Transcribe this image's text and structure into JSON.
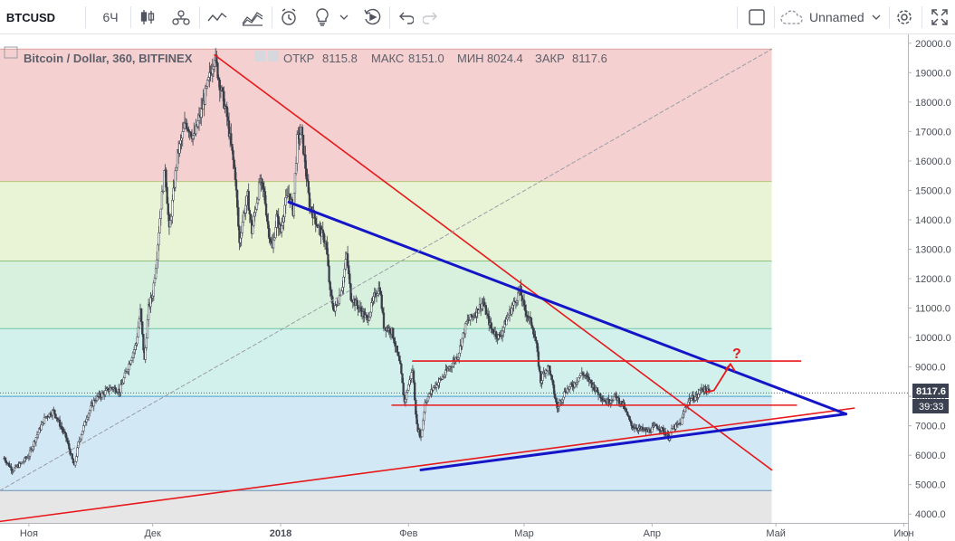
{
  "toolbar": {
    "symbol": "BTCUSD",
    "interval": "6Ч",
    "layout_name": "Unnamed",
    "icons": [
      "candles-icon",
      "compare-icon",
      "indicators-icon",
      "templates-icon",
      "alert-icon",
      "ideas-icon",
      "replay-icon",
      "undo-icon",
      "redo-icon",
      "square-icon",
      "cloud-icon",
      "settings-icon",
      "fullscreen-icon"
    ]
  },
  "legend": {
    "title": "Bitcoin / Dollar, 360, BITFINEX",
    "open_label": "ОТКР",
    "open": "8115.8",
    "high_label": "МАКС",
    "high": "8151.0",
    "low_label": "МИН",
    "low": "8024.4",
    "close_label": "ЗАКР",
    "close": "8117.6"
  },
  "price_tag": {
    "price": "8117.6",
    "countdown": "39:33"
  },
  "annotation": "?",
  "colors": {
    "candle": "#3b3f4a",
    "trend_red": "#e8181b",
    "trend_blue": "#1515c8",
    "fib_red": "#f5d0d0",
    "fib_yellow": "#e9f4d6",
    "fib_green": "#d8f1de",
    "fib_teal": "#d3f1ec",
    "fib_blue": "#d2e8f4",
    "fib_gray": "#e6e6e6"
  },
  "chart_data": {
    "type": "candlestick",
    "symbol": "BTCUSD",
    "timeframe": "360",
    "ylim": [
      3700,
      20300
    ],
    "y_ticks": [
      4000,
      5000,
      6000,
      7000,
      8000,
      9000,
      10000,
      11000,
      12000,
      13000,
      14000,
      15000,
      16000,
      17000,
      18000,
      19000,
      20000
    ],
    "y_tick_labels": [
      "4000.0",
      "5000.0",
      "6000.0",
      "7000.0",
      "8000.0",
      "9000.0",
      "10000.0",
      "11000.0",
      "12000.0",
      "13000.0",
      "14000.0",
      "15000.0",
      "16000.0",
      "17000.0",
      "18000.0",
      "19000.0",
      "20000.0"
    ],
    "x_labels": [
      {
        "label": "Ноя",
        "day": 0
      },
      {
        "label": "Дек",
        "day": 30
      },
      {
        "label": "2018",
        "day": 61
      },
      {
        "label": "Фев",
        "day": 92
      },
      {
        "label": "Мар",
        "day": 120
      },
      {
        "label": "Апр",
        "day": 151
      },
      {
        "label": "Май",
        "day": 181
      },
      {
        "label": "Июн",
        "day": 212
      }
    ],
    "x_range_days": [
      -7,
      213
    ],
    "price_path": [
      [
        -6,
        5900
      ],
      [
        -4,
        5500
      ],
      [
        -2,
        5700
      ],
      [
        0,
        6000
      ],
      [
        2,
        6700
      ],
      [
        4,
        7300
      ],
      [
        6,
        7500
      ],
      [
        7,
        7200
      ],
      [
        9,
        6600
      ],
      [
        11,
        5600
      ],
      [
        12,
        6400
      ],
      [
        14,
        7300
      ],
      [
        16,
        7900
      ],
      [
        18,
        8100
      ],
      [
        20,
        8300
      ],
      [
        22,
        8200
      ],
      [
        24,
        9000
      ],
      [
        26,
        9800
      ],
      [
        27,
        10900
      ],
      [
        28,
        9200
      ],
      [
        29,
        11000
      ],
      [
        30,
        11500
      ],
      [
        31,
        12800
      ],
      [
        32,
        14500
      ],
      [
        33,
        15800
      ],
      [
        34,
        13600
      ],
      [
        36,
        16200
      ],
      [
        38,
        17300
      ],
      [
        40,
        16800
      ],
      [
        42,
        17800
      ],
      [
        44,
        19000
      ],
      [
        45,
        19600
      ],
      [
        46,
        18800
      ],
      [
        48,
        17500
      ],
      [
        50,
        15500
      ],
      [
        51,
        13200
      ],
      [
        52,
        14200
      ],
      [
        53,
        14800
      ],
      [
        54,
        13600
      ],
      [
        56,
        15300
      ],
      [
        57,
        14900
      ],
      [
        58,
        13700
      ],
      [
        59,
        13000
      ],
      [
        60,
        14100
      ],
      [
        61,
        13600
      ],
      [
        62,
        14500
      ],
      [
        63,
        14900
      ],
      [
        64,
        14300
      ],
      [
        65,
        16700
      ],
      [
        66,
        17000
      ],
      [
        67,
        15800
      ],
      [
        68,
        14500
      ],
      [
        70,
        13800
      ],
      [
        72,
        13200
      ],
      [
        73,
        11500
      ],
      [
        74,
        10900
      ],
      [
        75,
        11300
      ],
      [
        76,
        11800
      ],
      [
        77,
        12800
      ],
      [
        78,
        11400
      ],
      [
        80,
        11000
      ],
      [
        82,
        10600
      ],
      [
        84,
        11500
      ],
      [
        85,
        11700
      ],
      [
        86,
        10400
      ],
      [
        88,
        10200
      ],
      [
        90,
        9000
      ],
      [
        91,
        7800
      ],
      [
        92,
        8400
      ],
      [
        93,
        8900
      ],
      [
        94,
        7000
      ],
      [
        95,
        6600
      ],
      [
        96,
        7800
      ],
      [
        98,
        8300
      ],
      [
        100,
        8600
      ],
      [
        102,
        9000
      ],
      [
        104,
        9400
      ],
      [
        106,
        10500
      ],
      [
        108,
        10800
      ],
      [
        110,
        11200
      ],
      [
        112,
        10300
      ],
      [
        114,
        10000
      ],
      [
        116,
        10700
      ],
      [
        118,
        11300
      ],
      [
        119,
        11600
      ],
      [
        120,
        11000
      ],
      [
        122,
        10400
      ],
      [
        123,
        9700
      ],
      [
        124,
        8500
      ],
      [
        125,
        8900
      ],
      [
        126,
        9000
      ],
      [
        127,
        8300
      ],
      [
        128,
        7600
      ],
      [
        130,
        8200
      ],
      [
        132,
        8400
      ],
      [
        134,
        8800
      ],
      [
        136,
        8500
      ],
      [
        138,
        8100
      ],
      [
        140,
        7800
      ],
      [
        142,
        8000
      ],
      [
        144,
        7700
      ],
      [
        146,
        7000
      ],
      [
        148,
        6900
      ],
      [
        150,
        6800
      ],
      [
        152,
        7000
      ],
      [
        154,
        6800
      ],
      [
        155,
        6600
      ],
      [
        156,
        6900
      ],
      [
        158,
        7100
      ],
      [
        159,
        7600
      ],
      [
        160,
        7900
      ],
      [
        162,
        8000
      ],
      [
        163,
        8300
      ],
      [
        165,
        8117
      ]
    ],
    "fibonacci_levels": [
      {
        "price": 19800
      },
      {
        "price": 15300
      },
      {
        "price": 12600
      },
      {
        "price": 10300
      },
      {
        "price": 8000
      },
      {
        "price": 4800
      }
    ],
    "trendlines": [
      {
        "color": "red",
        "points": [
          [
            45,
            19600
          ],
          [
            180,
            5500
          ]
        ]
      },
      {
        "color": "red",
        "points": [
          [
            -7,
            3750
          ],
          [
            200,
            7600
          ]
        ]
      },
      {
        "color": "blue",
        "points": [
          [
            63,
            14600
          ],
          [
            198,
            7400
          ]
        ]
      },
      {
        "color": "blue",
        "points": [
          [
            95,
            5500
          ],
          [
            198,
            7400
          ]
        ]
      },
      {
        "color": "red",
        "points": [
          [
            93,
            9200
          ],
          [
            187,
            9200
          ]
        ]
      },
      {
        "color": "red",
        "points": [
          [
            88,
            7700
          ],
          [
            186,
            7700
          ]
        ]
      },
      {
        "color": "gray-dashed",
        "points": [
          [
            -7,
            4800
          ],
          [
            180,
            19800
          ]
        ]
      }
    ],
    "arrow": {
      "from": [
        166,
        8200
      ],
      "to": [
        170,
        9100
      ]
    }
  }
}
